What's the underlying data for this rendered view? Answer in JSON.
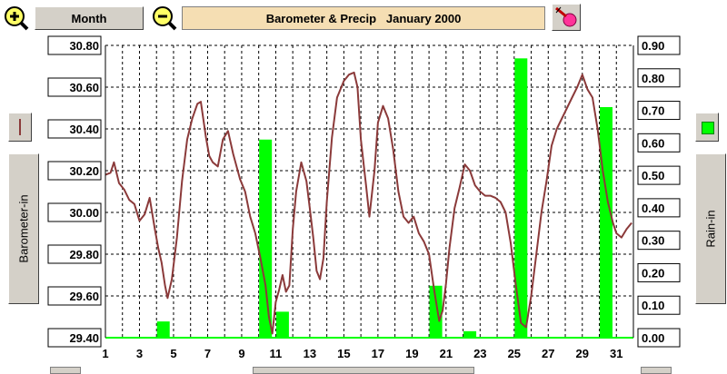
{
  "toolbar": {
    "period_label": "Month",
    "zoom_in_icon": "magnifier-plus-icon",
    "zoom_out_icon": "magnifier-minus-icon",
    "paint_icon": "paint-brush-icon"
  },
  "title": "Barometer & Precip   January 2000",
  "left_axis_label": "Barometer-in",
  "right_axis_label": "Rain-in",
  "colors": {
    "barometer_line": "#8b3a3a",
    "rain_bar": "#00ff00",
    "title_bg": "#f5deb3",
    "grid": "#000000"
  },
  "chart_data": {
    "type": "bar+line",
    "x_ticks": [
      "1",
      "3",
      "5",
      "7",
      "9",
      "11",
      "13",
      "15",
      "17",
      "19",
      "21",
      "23",
      "25",
      "27",
      "29",
      "31"
    ],
    "xlim": [
      1,
      32
    ],
    "y_left": {
      "label": "Barometer-in",
      "lim": [
        29.4,
        30.8
      ],
      "ticks": [
        "29.40",
        "29.60",
        "29.80",
        "30.00",
        "30.20",
        "30.40",
        "30.60",
        "30.80"
      ]
    },
    "y_right": {
      "label": "Rain-in",
      "lim": [
        0,
        0.9
      ],
      "ticks": [
        "0.00",
        "0.10",
        "0.20",
        "0.30",
        "0.40",
        "0.50",
        "0.60",
        "0.70",
        "0.80",
        "0.90"
      ]
    },
    "grid": true,
    "rain_bars": [
      {
        "day": 4.4,
        "value": 0.05
      },
      {
        "day": 10.4,
        "value": 0.61
      },
      {
        "day": 11.4,
        "value": 0.08
      },
      {
        "day": 20.4,
        "value": 0.16
      },
      {
        "day": 22.4,
        "value": 0.02
      },
      {
        "day": 25.4,
        "value": 0.86
      },
      {
        "day": 30.4,
        "value": 0.71
      }
    ],
    "barometer": {
      "name": "Barometer-in",
      "x": [
        1.0,
        1.3,
        1.5,
        1.8,
        2.1,
        2.4,
        2.7,
        3.0,
        3.3,
        3.6,
        3.9,
        4.1,
        4.3,
        4.5,
        4.65,
        4.9,
        5.2,
        5.5,
        5.8,
        6.1,
        6.4,
        6.6,
        6.9,
        7.1,
        7.3,
        7.6,
        7.9,
        8.2,
        8.5,
        8.9,
        9.2,
        9.5,
        9.8,
        10.1,
        10.4,
        10.6,
        10.8,
        11.0,
        11.2,
        11.4,
        11.6,
        11.8,
        12.0,
        12.2,
        12.5,
        12.8,
        13.0,
        13.2,
        13.4,
        13.6,
        13.8,
        14.0,
        14.3,
        14.6,
        15.0,
        15.3,
        15.6,
        15.8,
        16.0,
        16.3,
        16.5,
        16.8,
        17.0,
        17.3,
        17.6,
        17.9,
        18.2,
        18.5,
        18.8,
        19.1,
        19.4,
        19.7,
        20.0,
        20.3,
        20.6,
        20.8,
        21.0,
        21.2,
        21.5,
        21.8,
        22.1,
        22.4,
        22.7,
        23.0,
        23.3,
        23.6,
        23.9,
        24.2,
        24.5,
        24.8,
        25.1,
        25.4,
        25.7,
        26.0,
        26.3,
        26.6,
        26.9,
        27.2,
        27.5,
        27.8,
        28.1,
        28.4,
        28.7,
        29.0,
        29.3,
        29.6,
        29.9,
        30.2,
        30.5,
        30.8,
        31.0,
        31.3,
        31.6,
        31.9
      ],
      "y": [
        30.18,
        30.19,
        30.24,
        30.14,
        30.11,
        30.06,
        30.04,
        29.96,
        29.99,
        30.07,
        29.92,
        29.83,
        29.76,
        29.65,
        29.59,
        29.68,
        29.88,
        30.15,
        30.35,
        30.45,
        30.52,
        30.53,
        30.36,
        30.27,
        30.24,
        30.22,
        30.35,
        30.39,
        30.28,
        30.16,
        30.1,
        29.98,
        29.9,
        29.78,
        29.65,
        29.5,
        29.42,
        29.57,
        29.63,
        29.7,
        29.62,
        29.65,
        29.92,
        30.1,
        30.24,
        30.15,
        30.02,
        29.88,
        29.72,
        29.68,
        29.78,
        30.05,
        30.36,
        30.55,
        30.63,
        30.66,
        30.67,
        30.6,
        30.35,
        30.13,
        29.98,
        30.2,
        30.43,
        30.51,
        30.45,
        30.3,
        30.1,
        29.98,
        29.95,
        29.98,
        29.9,
        29.86,
        29.8,
        29.63,
        29.48,
        29.53,
        29.66,
        29.83,
        30.02,
        30.12,
        30.23,
        30.2,
        30.13,
        30.1,
        30.08,
        30.08,
        30.07,
        30.05,
        30.0,
        29.85,
        29.65,
        29.47,
        29.45,
        29.6,
        29.8,
        30.0,
        30.15,
        30.32,
        30.4,
        30.45,
        30.5,
        30.55,
        30.6,
        30.66,
        30.59,
        30.55,
        30.4,
        30.2,
        30.05,
        29.95,
        29.9,
        29.88,
        29.92,
        29.95
      ]
    }
  }
}
